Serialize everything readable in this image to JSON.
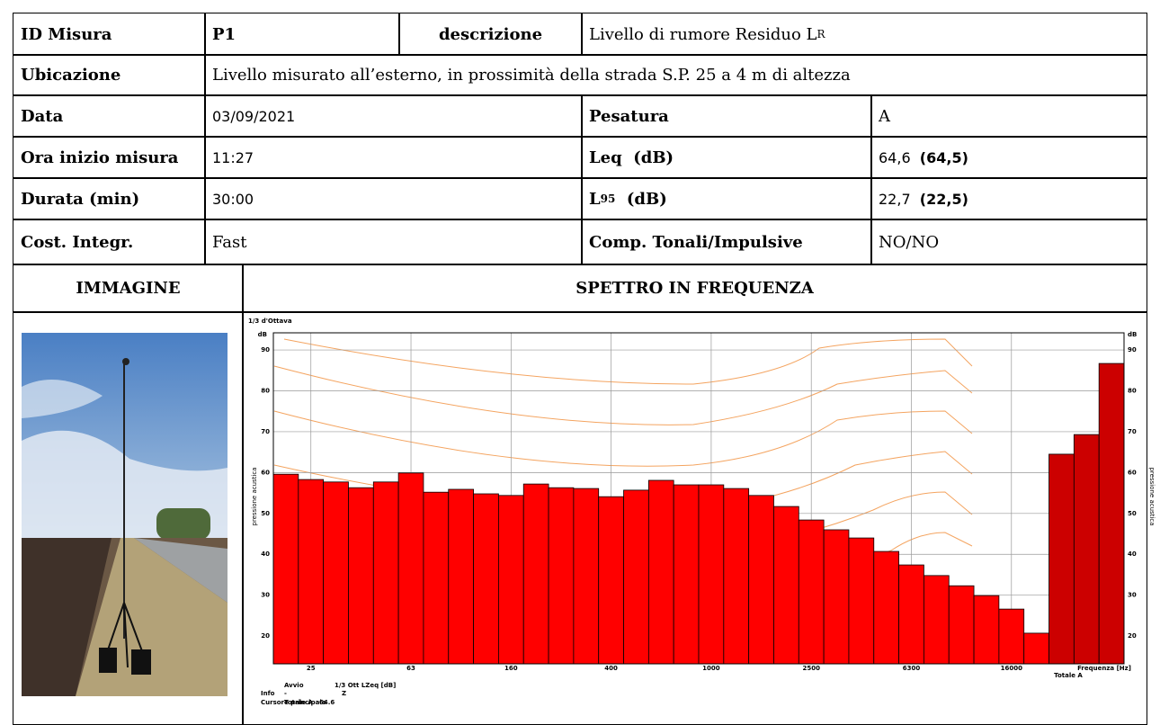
{
  "id_label": "ID Misura",
  "id": "P1",
  "desc_label": "descrizione",
  "desc": "Livello di rumore Residuo L",
  "desc_sub": "R",
  "location_label": "Ubicazione",
  "location": "Livello misurato all’esterno, in prossimità della strada S.P. 25 a 4 m di altezza",
  "date_label": "Data",
  "date": "03/09/2021",
  "weighting_label": "Pesatura",
  "weighting": "A",
  "start_label": "Ora inizio misura",
  "start": "11:27",
  "leq_label": "Leq  (dB)",
  "leq": "64,6",
  "leq_bold": "(64,5)",
  "duration_label": "Durata (min)",
  "duration": "30:00",
  "l95_label": "L",
  "l95_sub": "95",
  "l95_unit": "(dB)",
  "l95": "22,7",
  "l95_bold": "(22,5)",
  "const_label": "Cost. Integr.",
  "const": "Fast",
  "tonal_label": "Comp. Tonali/Impulsive",
  "tonal": "NO/NO",
  "image_header": "IMMAGINE",
  "spectrum_header": "SPETTRO IN FREQUENZA",
  "chart_data": {
    "type": "bar",
    "subtitle": "1/3 d'Ottava",
    "y_unit": "dB",
    "y_label": "pressione acustica",
    "x_label": "Frequenza [Hz]",
    "total_label": "Totale A",
    "categories": [
      null,
      "25",
      null,
      null,
      null,
      "63",
      null,
      null,
      null,
      "160",
      null,
      null,
      null,
      "400",
      null,
      null,
      null,
      "1000",
      null,
      null,
      null,
      "2500",
      null,
      null,
      null,
      "6300",
      null,
      null,
      null,
      "16000",
      null,
      null,
      null,
      null
    ],
    "values": [
      59.6,
      58.3,
      57.7,
      56.3,
      57.7,
      59.9,
      55.2,
      55.9,
      54.8,
      54.4,
      57.2,
      56.3,
      56.1,
      54.1,
      55.7,
      58.1,
      57.0,
      57.0,
      56.1,
      54.4,
      51.7,
      48.4,
      46.0,
      44.0,
      40.7,
      37.4,
      34.8,
      32.3,
      29.9,
      26.6,
      20.7,
      64.5,
      69.3,
      86.7
    ],
    "colors": [
      "#ff0000",
      "#ff0000",
      "#ff0000",
      "#ff0000",
      "#ff0000",
      "#ff0000",
      "#ff0000",
      "#ff0000",
      "#ff0000",
      "#ff0000",
      "#ff0000",
      "#ff0000",
      "#ff0000",
      "#ff0000",
      "#ff0000",
      "#ff0000",
      "#ff0000",
      "#ff0000",
      "#ff0000",
      "#ff0000",
      "#ff0000",
      "#ff0000",
      "#ff0000",
      "#ff0000",
      "#ff0000",
      "#ff0000",
      "#ff0000",
      "#ff0000",
      "#ff0000",
      "#ff0000",
      "#ff0000",
      "#cc0000",
      "#cc0000",
      "#cc0000"
    ],
    "ylim": [
      13.2,
      94.2
    ],
    "yticks": [
      20,
      30,
      40,
      50,
      60,
      70,
      80,
      90
    ],
    "grid": true,
    "info": {
      "start_label": "Avvio",
      "mode": "1/3 Ott LZeq [dB]",
      "info_label": "Info",
      "dash": "-",
      "weighting": "Z",
      "cursor_label": "Cursore principale",
      "cursor_band": "Totale A",
      "cursor_value": "64.6"
    }
  }
}
